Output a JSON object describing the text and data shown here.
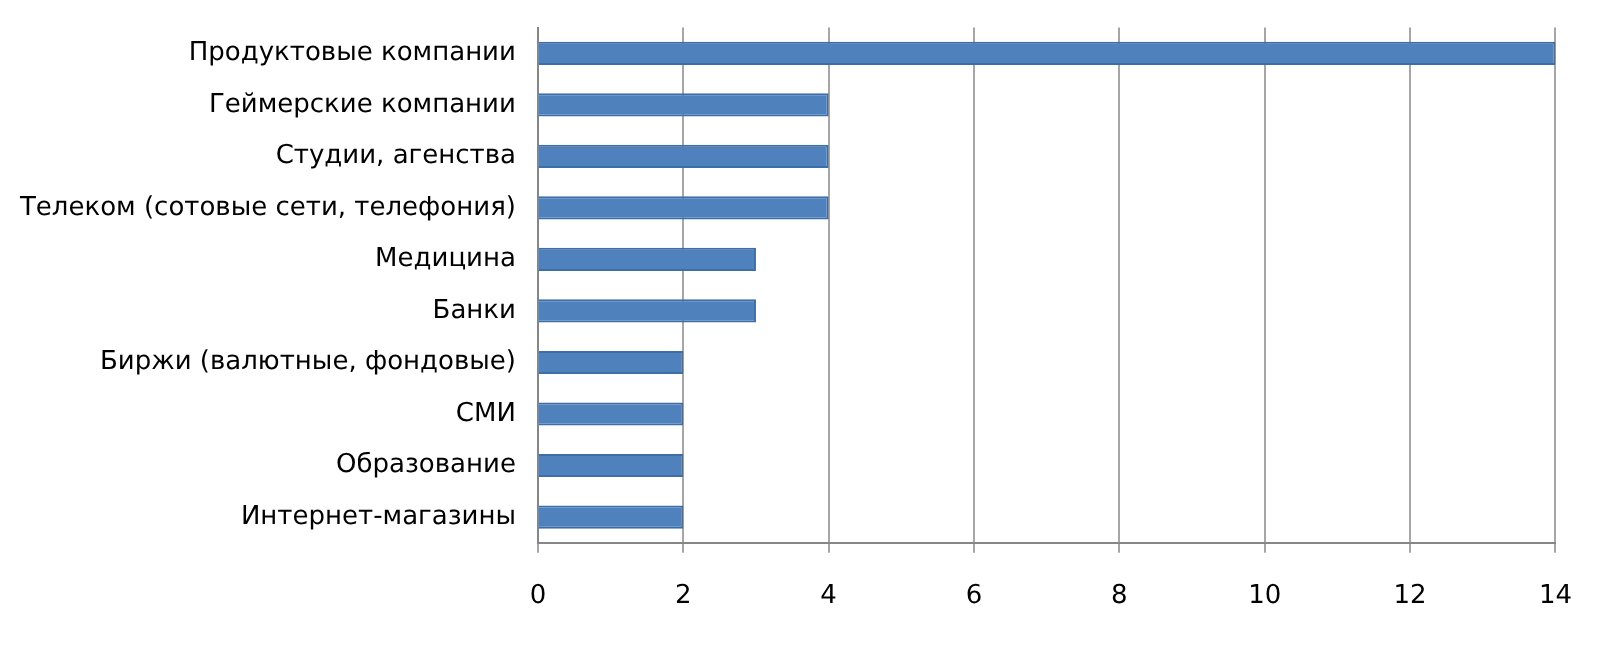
{
  "chart_data": {
    "type": "bar",
    "orientation": "horizontal",
    "categories": [
      "Продуктовые компании",
      "Геймерские компании",
      "Студии, агенства",
      "Телеком (сотовые сети, телефония)",
      "Медицина",
      "Банки",
      "Биржи (валютные, фондовые)",
      "СМИ",
      "Образование",
      "Интернет-магазины"
    ],
    "values": [
      14,
      4,
      4,
      4,
      3,
      3,
      2,
      2,
      2,
      2
    ],
    "color": "#4f81bd",
    "xlim": [
      0,
      14
    ],
    "xticks": [
      0,
      2,
      4,
      6,
      8,
      10,
      12,
      14
    ],
    "grid": "x",
    "legend": false
  }
}
